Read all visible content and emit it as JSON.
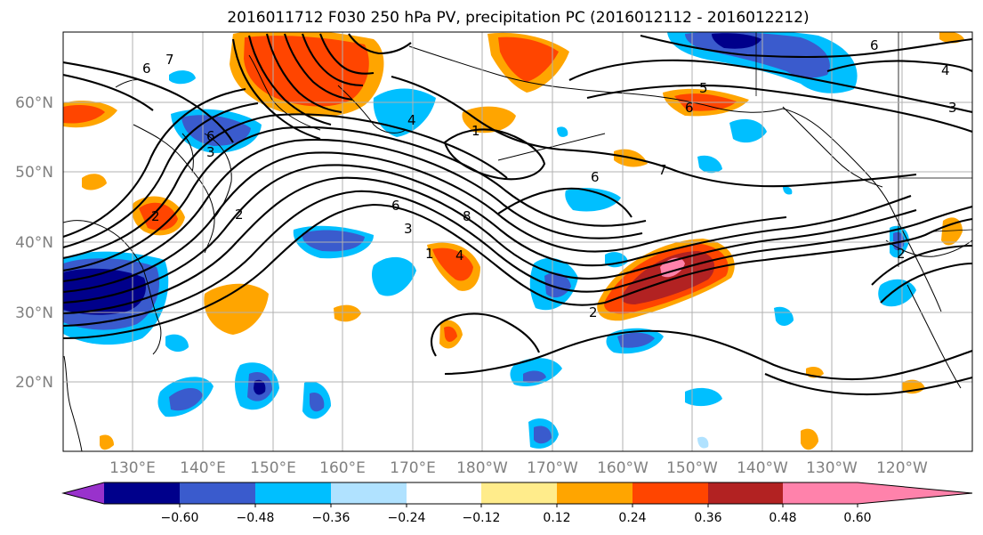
{
  "title": "2016011712 F030 250 hPa PV, precipitation PC (2016012112 - 2016012212)",
  "map": {
    "lat_labels": [
      "60°N",
      "50°N",
      "40°N",
      "30°N",
      "20°N"
    ],
    "lon_labels": [
      "130°E",
      "140°E",
      "150°E",
      "160°E",
      "170°E",
      "180°W",
      "170°W",
      "160°W",
      "150°W",
      "140°W",
      "130°W",
      "120°W"
    ],
    "contour_labels": [
      "6",
      "7",
      "6",
      "3",
      "4",
      "1",
      "6",
      "7",
      "5",
      "6",
      "3",
      "4",
      "6",
      "8",
      "6",
      "3",
      "2",
      "4",
      "1",
      "2",
      "2",
      "2"
    ]
  },
  "colorbar": {
    "colors": [
      "#9932cc",
      "#00008b",
      "#3a5bcd",
      "#00bfff",
      "#b0e2ff",
      "#ffffff",
      "#ffec8b",
      "#ffa500",
      "#ff4500",
      "#b22222",
      "#ff82ab"
    ],
    "tick_labels": [
      "−0.60",
      "−0.48",
      "−0.36",
      "−0.24",
      "−0.12",
      "0.12",
      "0.24",
      "0.36",
      "0.48",
      "0.60"
    ]
  }
}
